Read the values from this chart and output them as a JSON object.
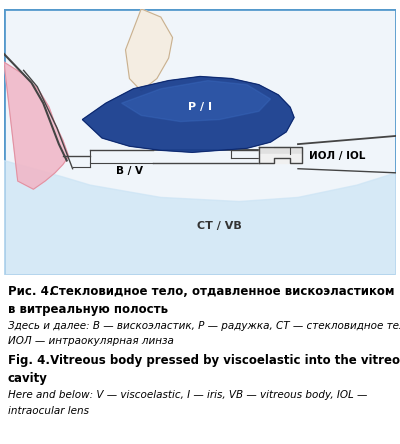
{
  "fig_width": 4.0,
  "fig_height": 4.44,
  "dpi": 100,
  "bg_color": "#ffffff",
  "border_color": "#5599cc",
  "image_bg": "#f0f5fa",
  "blue_color": "#1a3f8f",
  "pink_dark": "#e090a0",
  "pink_light": "#f0b8c8",
  "cream_color": "#f5ede0",
  "light_blue_vb": "#cce4f5",
  "gray_line": "#444444",
  "gray_light": "#888888",
  "caption_title_ru": "Рис. 4.",
  "caption_body_ru": " Стекловидное тело, отдавленное вискоэластиком",
  "caption_body_ru2": "в витреальную полость",
  "caption_sub_ru": "Здесь и далее: В — вискоэластик, Р — радужка, СТ — стекловидное тело,",
  "caption_sub_ru2": "ИОЛ — интраокулярная линза",
  "caption_title_en": "Fig. 4.",
  "caption_body_en": " Vitreous body pressed by viscoelastic into the vitreous",
  "caption_body_en2": "cavity",
  "caption_sub_en": "Here and below: V — viscoelastic, I — iris, VB — vitreous body, IOL —",
  "caption_sub_en2": "intraocular lens",
  "label_iris": "P / I",
  "label_visc": "B / V",
  "label_iol": "ИОЛ / IOL",
  "label_vb": "СТ / VB"
}
